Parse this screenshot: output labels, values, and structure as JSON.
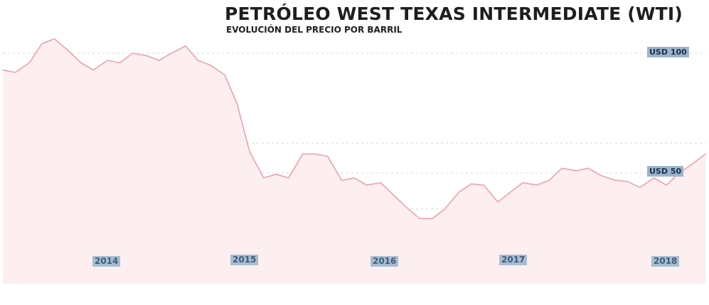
{
  "title": "PETRÓLEO WEST TEXAS INTERMEDIATE (WTI)",
  "subtitle": "EVOLUCIÓN DEL PRECIO POR BARRIL",
  "colors": {
    "line": "#e9a3ac",
    "fill": "#fdeef0",
    "grid": "#d4d4d4",
    "label_bg": "#9fb4c9",
    "label_text": "#16334f"
  },
  "chart_data": {
    "type": "area",
    "title": "PETRÓLEO WEST TEXAS INTERMEDIATE (WTI)",
    "subtitle": "EVOLUCIÓN DEL PRECIO POR BARRIL",
    "xlabel": "",
    "ylabel": "",
    "x_tick_labels": [
      "2014",
      "2015",
      "2016",
      "2017",
      "2018"
    ],
    "y_annotations": [
      {
        "value": 100,
        "label": "USD 100"
      },
      {
        "value": 50,
        "label": "USD 50"
      }
    ],
    "gridlines": [
      100,
      62.5,
      50,
      35
    ],
    "grid": true,
    "ylim": [
      20,
      110
    ],
    "x": [
      2013.75,
      2013.83,
      2013.92,
      2014.0,
      2014.08,
      2014.17,
      2014.25,
      2014.33,
      2014.42,
      2014.5,
      2014.58,
      2014.67,
      2014.75,
      2014.83,
      2014.92,
      2015.0,
      2015.08,
      2015.17,
      2015.25,
      2015.33,
      2015.42,
      2015.5,
      2015.58,
      2015.67,
      2015.75,
      2015.83,
      2015.92,
      2016.0,
      2016.08,
      2016.17,
      2016.25,
      2016.33,
      2016.42,
      2016.5,
      2016.58,
      2016.67,
      2016.75,
      2016.83,
      2016.92,
      2017.0,
      2017.08,
      2017.17,
      2017.25,
      2017.33,
      2017.42,
      2017.5,
      2017.58,
      2017.67,
      2017.75,
      2017.83,
      2017.92,
      2018.0,
      2018.08,
      2018.17,
      2018.25
    ],
    "values": [
      93,
      92,
      96,
      104,
      106,
      101,
      96,
      93,
      97,
      96,
      100,
      99,
      97,
      100,
      103,
      97,
      95,
      91,
      79,
      59,
      48,
      49.5,
      48,
      58,
      58,
      57,
      47,
      48,
      45,
      46,
      41,
      36,
      31,
      31,
      35,
      42,
      45.5,
      45,
      38,
      42,
      46,
      45,
      47,
      52,
      51,
      52,
      49,
      47,
      46.5,
      44,
      48,
      45,
      50,
      54,
      58
    ]
  }
}
